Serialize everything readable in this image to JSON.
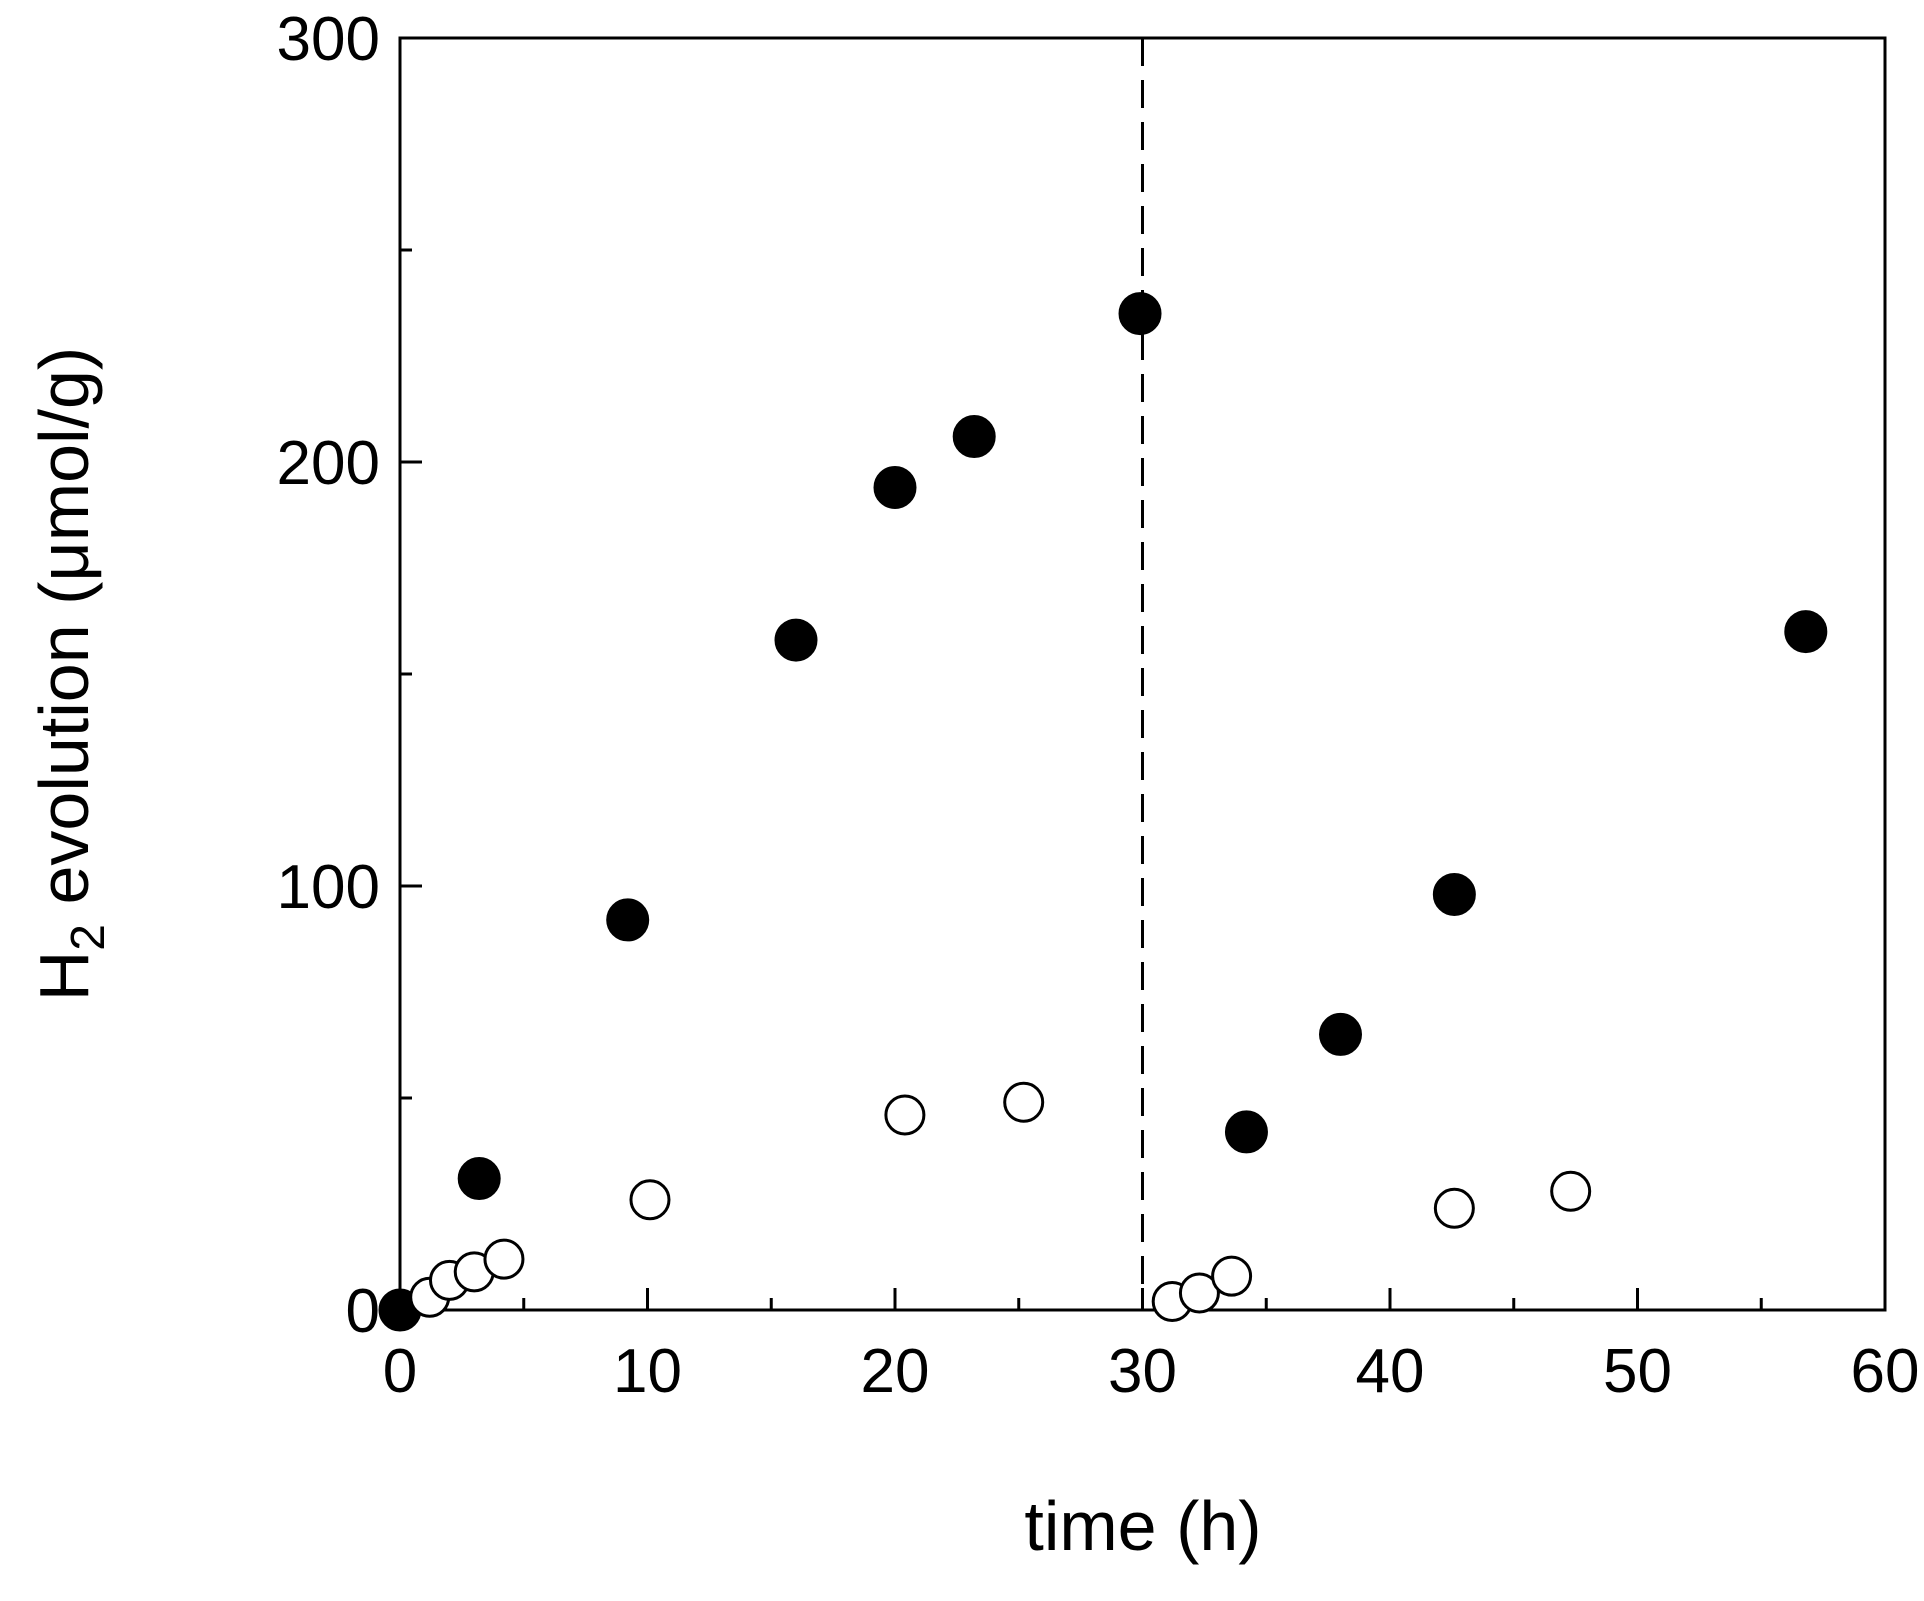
{
  "chart_data": {
    "type": "scatter",
    "title": "",
    "xlabel": "time (h)",
    "ylabel": {
      "prefix": "H",
      "subscript": "2",
      "suffix": " evolution (μmol/g)"
    },
    "xlim": [
      0,
      60
    ],
    "ylim": [
      0,
      300
    ],
    "xticks": [
      0,
      10,
      20,
      30,
      40,
      50,
      60
    ],
    "xminor": [
      5,
      15,
      25,
      35,
      45,
      55
    ],
    "yticks": [
      0,
      100,
      200,
      300
    ],
    "yminor": [
      50,
      150,
      250
    ],
    "grid": false,
    "legend": "none",
    "reference_line": {
      "orientation": "vertical",
      "x": 30,
      "style": "dashed"
    },
    "series": [
      {
        "marker": "filled-circle",
        "color": "#000000",
        "points": [
          [
            0,
            0
          ],
          [
            3.2,
            31
          ],
          [
            9.2,
            92
          ],
          [
            16,
            158
          ],
          [
            20,
            194
          ],
          [
            23.2,
            206
          ],
          [
            29.9,
            235
          ],
          [
            34.2,
            42
          ],
          [
            38,
            65
          ],
          [
            42.6,
            98
          ],
          [
            56.8,
            160
          ]
        ]
      },
      {
        "marker": "open-circle",
        "color": "#000000",
        "points": [
          [
            1.2,
            3
          ],
          [
            2,
            7
          ],
          [
            3,
            9
          ],
          [
            4.2,
            12
          ],
          [
            10.1,
            26
          ],
          [
            20.4,
            46
          ],
          [
            25.2,
            49
          ],
          [
            31.2,
            2
          ],
          [
            32.3,
            4
          ],
          [
            33.6,
            8
          ],
          [
            42.6,
            24
          ],
          [
            47.3,
            28
          ]
        ]
      }
    ]
  }
}
